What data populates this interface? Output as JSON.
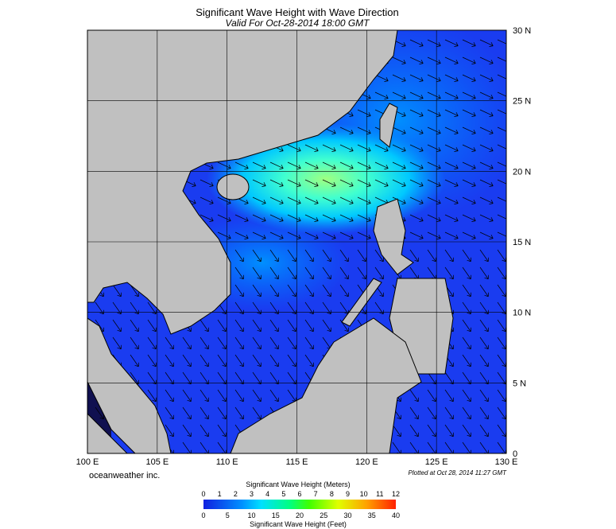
{
  "header": {
    "title": "Significant Wave Height with Wave Direction",
    "subtitle": "Valid For Oct-28-2014 18:00 GMT"
  },
  "map": {
    "x_labels": [
      "100 E",
      "105 E",
      "110 E",
      "115 E",
      "120 E",
      "125 E",
      "130 E"
    ],
    "y_labels": [
      "30 N",
      "25 N",
      "20 N",
      "15 N",
      "10 N",
      "5 N",
      "0"
    ]
  },
  "credit": "oceanweather inc.",
  "plotted": "Plotted at Oct 28, 2014 11:27 GMT",
  "colorbar": {
    "title_top": "Significant Wave Height (Meters)",
    "ticks_top": [
      0,
      1,
      2,
      3,
      4,
      5,
      6,
      7,
      8,
      9,
      10,
      11,
      12
    ],
    "ticks_bottom": [
      0,
      5,
      10,
      15,
      20,
      25,
      30,
      35,
      40
    ],
    "title_bottom": "Significant Wave Height (Feet)"
  }
}
